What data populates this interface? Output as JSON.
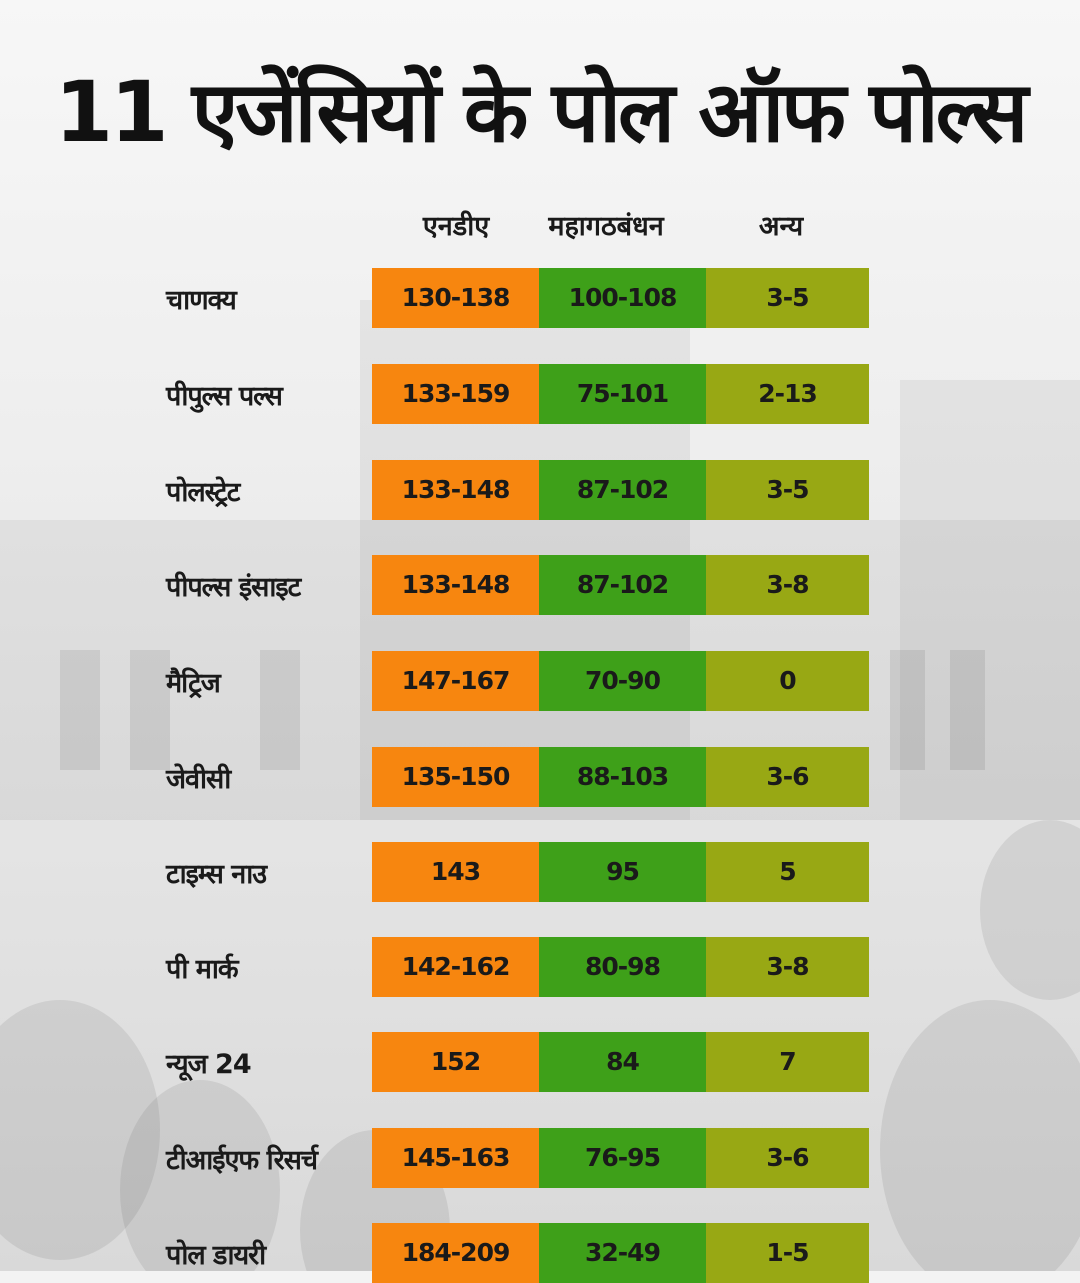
{
  "title": "11 एजेंसियों के पोल ऑफ पोल्स",
  "colors": {
    "nda": "#f7860f",
    "mahagathbandhan": "#3ea019",
    "others": "#98a814"
  },
  "chart_data": {
    "type": "table",
    "title": "11 एजेंसियों के पोल ऑफ पोल्स",
    "columns": [
      "एनडीए",
      "महागठबंधन",
      "अन्य"
    ],
    "rows": [
      {
        "agency": "चाणक्य",
        "nda": "130-138",
        "mahagathbandhan": "100-108",
        "others": "3-5"
      },
      {
        "agency": "पीपुल्स पल्स",
        "nda": "133-159",
        "mahagathbandhan": "75-101",
        "others": "2-13"
      },
      {
        "agency": "पोलस्ट्रेट",
        "nda": "133-148",
        "mahagathbandhan": "87-102",
        "others": "3-5"
      },
      {
        "agency": "पीपल्स इंसाइट",
        "nda": "133-148",
        "mahagathbandhan": "87-102",
        "others": "3-8"
      },
      {
        "agency": "मैट्रिज",
        "nda": "147-167",
        "mahagathbandhan": "70-90",
        "others": "0"
      },
      {
        "agency": "जेवीसी",
        "nda": "135-150",
        "mahagathbandhan": "88-103",
        "others": "3-6"
      },
      {
        "agency": "टाइम्स नाउ",
        "nda": "143",
        "mahagathbandhan": "95",
        "others": "5"
      },
      {
        "agency": "पी मार्क",
        "nda": "142-162",
        "mahagathbandhan": "80-98",
        "others": "3-8"
      },
      {
        "agency": "न्यूज 24",
        "nda": "152",
        "mahagathbandhan": "84",
        "others": "7"
      },
      {
        "agency": "टीआईएफ रिसर्च",
        "nda": "145-163",
        "mahagathbandhan": "76-95",
        "others": "3-6"
      },
      {
        "agency": "पोल डायरी",
        "nda": "184-209",
        "mahagathbandhan": "32-49",
        "others": "1-5"
      }
    ]
  }
}
